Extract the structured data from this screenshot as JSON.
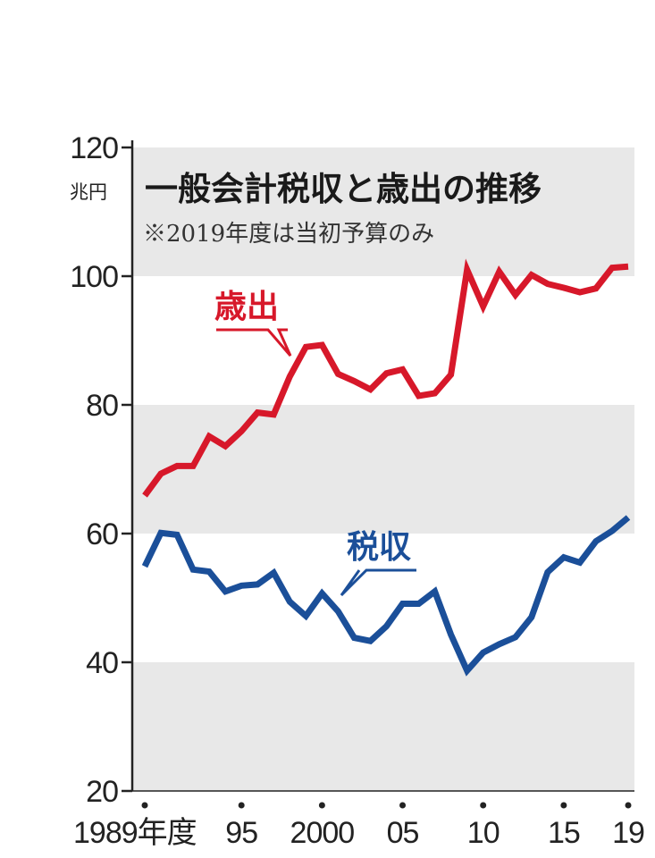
{
  "chart_data": {
    "type": "line",
    "title": "一般会計税収と歳出の推移",
    "subtitle": "※2019年度は当初予算のみ",
    "unit": "兆円",
    "ylim": [
      20,
      120
    ],
    "yticks": [
      20,
      40,
      60,
      80,
      100,
      120
    ],
    "xlim": [
      1989,
      2019
    ],
    "xtick_values": [
      1989,
      1995,
      2000,
      2005,
      2010,
      2015,
      2019
    ],
    "xtick_labels": [
      "1989年度",
      "95",
      "2000",
      "05",
      "10",
      "15",
      "19"
    ],
    "x": [
      1989,
      1990,
      1991,
      1992,
      1993,
      1994,
      1995,
      1996,
      1997,
      1998,
      1999,
      2000,
      2001,
      2002,
      2003,
      2004,
      2005,
      2006,
      2007,
      2008,
      2009,
      2010,
      2011,
      2012,
      2013,
      2014,
      2015,
      2016,
      2017,
      2018,
      2019
    ],
    "series": [
      {
        "name": "歳出",
        "color": "#d7182a",
        "values": [
          65.9,
          69.3,
          70.5,
          70.5,
          75.1,
          73.6,
          75.9,
          78.8,
          78.5,
          84.4,
          89.0,
          89.3,
          84.8,
          83.7,
          82.4,
          84.9,
          85.5,
          81.4,
          81.8,
          84.7,
          101.0,
          95.3,
          100.7,
          97.1,
          100.2,
          98.8,
          98.2,
          97.5,
          98.1,
          101.3,
          101.5
        ]
      },
      {
        "name": "税収",
        "color": "#1b4f99",
        "values": [
          54.9,
          60.1,
          59.8,
          54.4,
          54.1,
          51.0,
          51.9,
          52.1,
          53.9,
          49.4,
          47.2,
          50.7,
          47.9,
          43.8,
          43.3,
          45.6,
          49.1,
          49.1,
          51.0,
          44.3,
          38.7,
          41.5,
          42.8,
          43.9,
          47.0,
          54.0,
          56.3,
          55.5,
          58.8,
          60.4,
          62.5
        ]
      }
    ],
    "grid": "alternating horizontal bands"
  }
}
